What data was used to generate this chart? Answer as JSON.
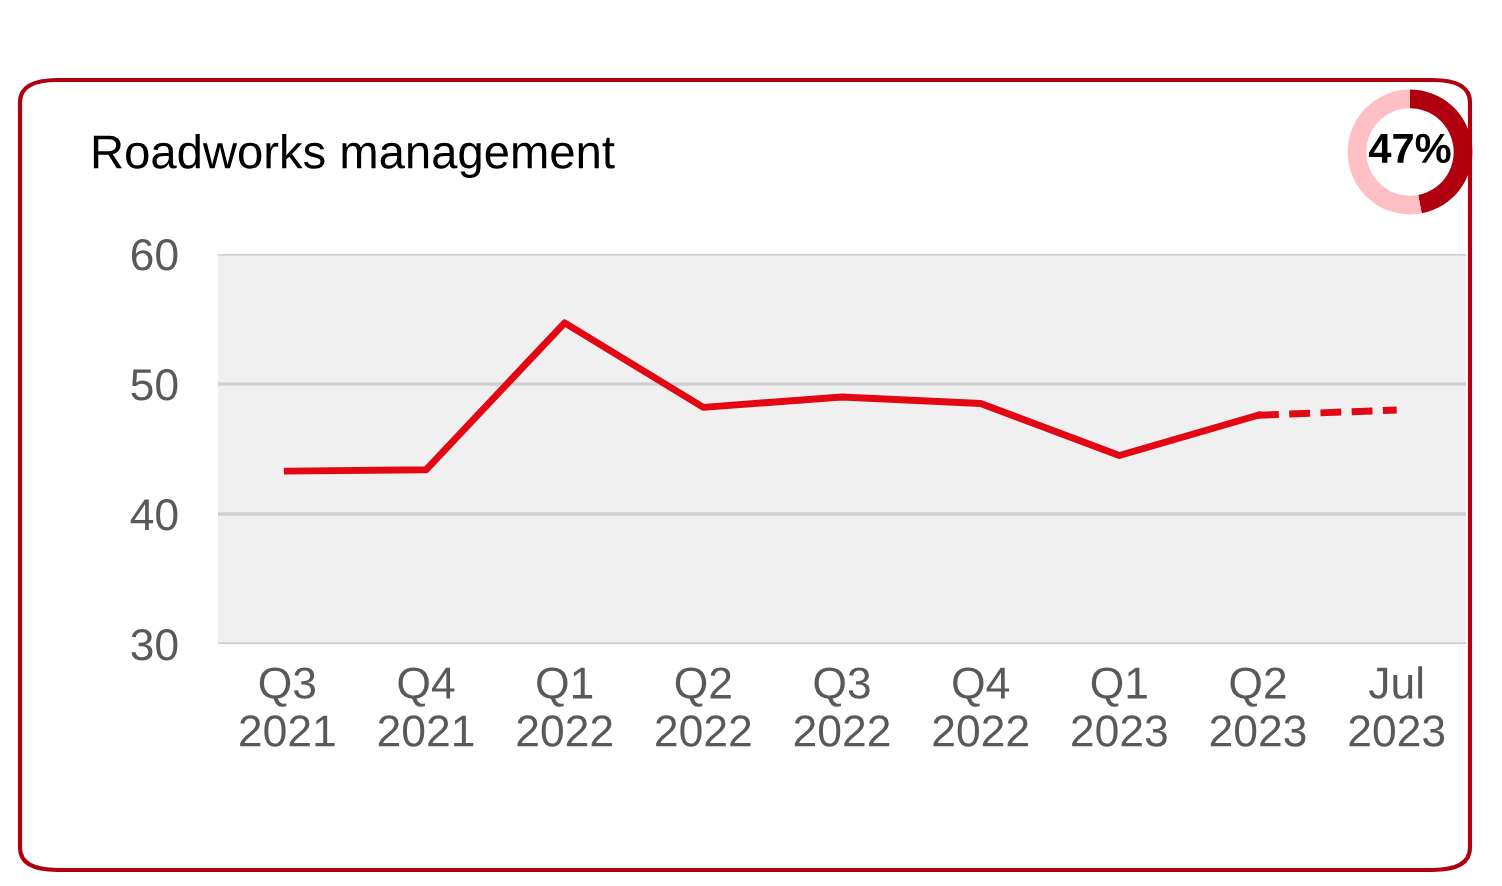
{
  "chart_data": [
    {
      "type": "line",
      "title": "Roadworks management",
      "categories": [
        "Q3\n2021",
        "Q4\n2021",
        "Q1\n2022",
        "Q2\n2022",
        "Q3\n2022",
        "Q4\n2022",
        "Q1\n2023",
        "Q2\n2023",
        "Jul\n2023"
      ],
      "series": [
        {
          "color": "#e30613",
          "line_style": "solid",
          "values": [
            43.3,
            43.4,
            54.7,
            48.2,
            49.0,
            48.5,
            44.5,
            47.6,
            null
          ]
        },
        {
          "color": "#e30613",
          "line_style": "dashed",
          "values": [
            null,
            null,
            null,
            null,
            null,
            null,
            null,
            47.6,
            48.0
          ]
        }
      ],
      "ylim": [
        30,
        60
      ],
      "yticks": [
        30,
        40,
        50,
        60
      ],
      "grid": "y",
      "legend": false,
      "marker": "none"
    },
    {
      "type": "donut",
      "categories": [
        null,
        null
      ],
      "values": [
        47,
        53
      ],
      "colors": [
        "#b00010",
        "#ffc0c4"
      ],
      "annotations": [
        "47%"
      ]
    }
  ]
}
